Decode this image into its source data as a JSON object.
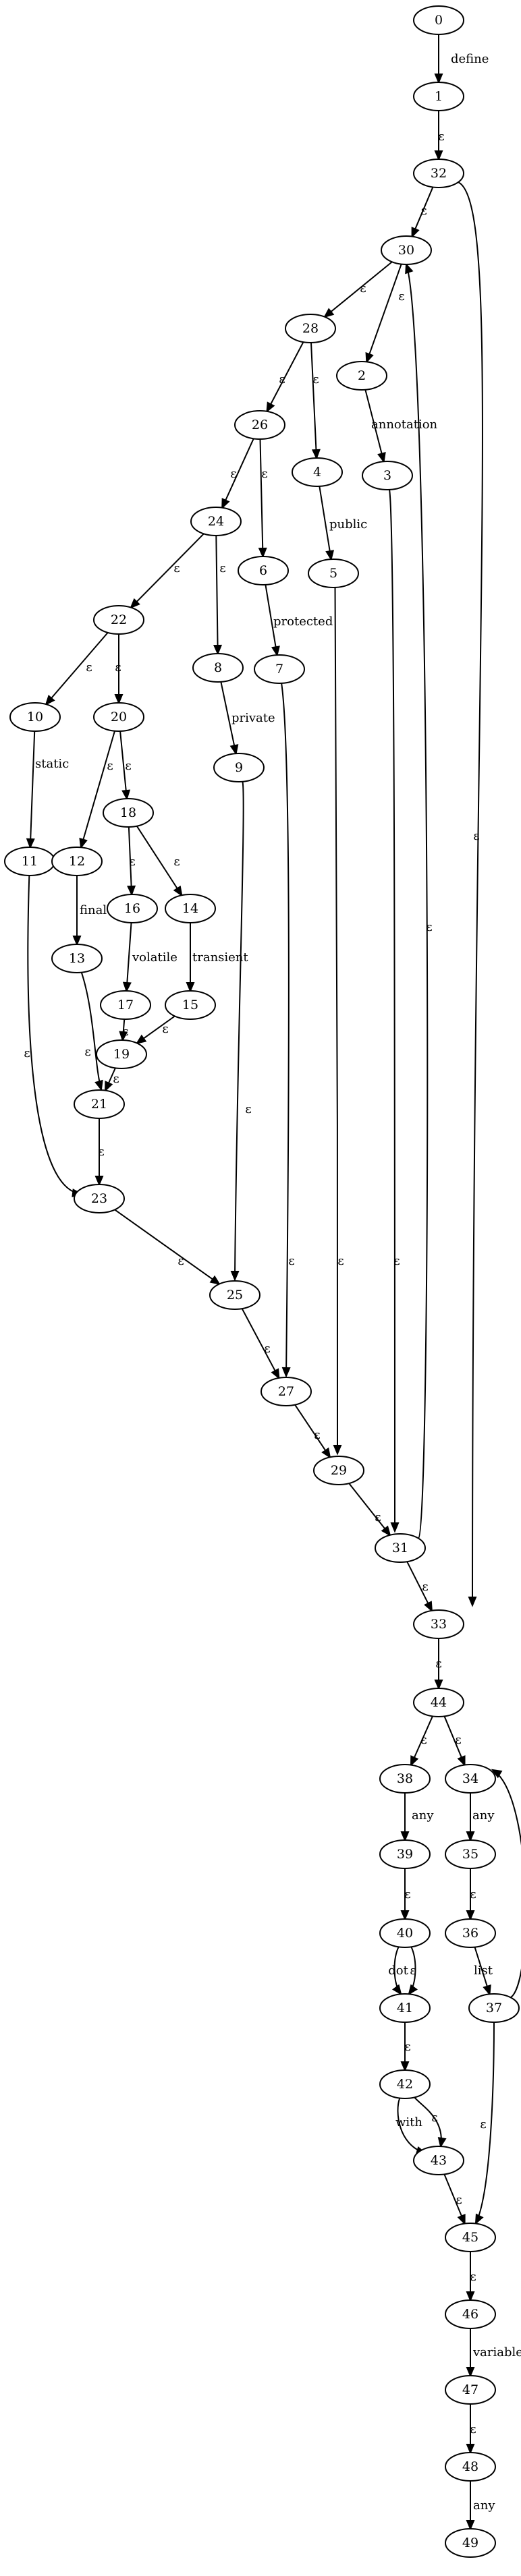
{
  "graph": {
    "nodes": [
      "0",
      "1",
      "32",
      "30",
      "28",
      "2",
      "26",
      "4",
      "3",
      "24",
      "6",
      "5",
      "22",
      "8",
      "7",
      "10",
      "20",
      "9",
      "11",
      "12",
      "18",
      "16",
      "14",
      "13",
      "17",
      "15",
      "19",
      "21",
      "23",
      "25",
      "27",
      "29",
      "31",
      "33",
      "44",
      "38",
      "34",
      "39",
      "35",
      "40",
      "36",
      "41",
      "37",
      "42",
      "43",
      "45",
      "46",
      "47",
      "48",
      "49"
    ],
    "edges": [
      {
        "from": "0",
        "to": "1",
        "label": "define"
      },
      {
        "from": "1",
        "to": "32",
        "label": "ε"
      },
      {
        "from": "32",
        "to": "30",
        "label": "ε"
      },
      {
        "from": "32",
        "to": "33",
        "label": "ε"
      },
      {
        "from": "30",
        "to": "28",
        "label": "ε"
      },
      {
        "from": "30",
        "to": "2",
        "label": "ε"
      },
      {
        "from": "28",
        "to": "26",
        "label": "ε"
      },
      {
        "from": "28",
        "to": "4",
        "label": "ε"
      },
      {
        "from": "2",
        "to": "3",
        "label": "annotation"
      },
      {
        "from": "26",
        "to": "24",
        "label": "ε"
      },
      {
        "from": "26",
        "to": "6",
        "label": "ε"
      },
      {
        "from": "4",
        "to": "5",
        "label": "public"
      },
      {
        "from": "3",
        "to": "31",
        "label": "ε"
      },
      {
        "from": "24",
        "to": "22",
        "label": "ε"
      },
      {
        "from": "24",
        "to": "8",
        "label": "ε"
      },
      {
        "from": "6",
        "to": "7",
        "label": "protected"
      },
      {
        "from": "5",
        "to": "29",
        "label": "ε"
      },
      {
        "from": "22",
        "to": "10",
        "label": "ε"
      },
      {
        "from": "22",
        "to": "20",
        "label": "ε"
      },
      {
        "from": "8",
        "to": "9",
        "label": "private"
      },
      {
        "from": "7",
        "to": "27",
        "label": "ε"
      },
      {
        "from": "10",
        "to": "11",
        "label": "static"
      },
      {
        "from": "20",
        "to": "12",
        "label": "ε"
      },
      {
        "from": "20",
        "to": "18",
        "label": "ε"
      },
      {
        "from": "9",
        "to": "25",
        "label": "ε"
      },
      {
        "from": "11",
        "to": "23",
        "label": "ε"
      },
      {
        "from": "12",
        "to": "13",
        "label": "final"
      },
      {
        "from": "18",
        "to": "16",
        "label": "ε"
      },
      {
        "from": "18",
        "to": "14",
        "label": "ε"
      },
      {
        "from": "16",
        "to": "17",
        "label": "volatile"
      },
      {
        "from": "14",
        "to": "15",
        "label": "transient"
      },
      {
        "from": "13",
        "to": "21",
        "label": "ε"
      },
      {
        "from": "17",
        "to": "19",
        "label": "ε"
      },
      {
        "from": "15",
        "to": "19",
        "label": "ε"
      },
      {
        "from": "19",
        "to": "21",
        "label": "ε"
      },
      {
        "from": "21",
        "to": "23",
        "label": "ε"
      },
      {
        "from": "23",
        "to": "25",
        "label": "ε"
      },
      {
        "from": "25",
        "to": "27",
        "label": "ε"
      },
      {
        "from": "27",
        "to": "29",
        "label": "ε"
      },
      {
        "from": "29",
        "to": "31",
        "label": "ε"
      },
      {
        "from": "31",
        "to": "30",
        "label": "ε"
      },
      {
        "from": "31",
        "to": "33",
        "label": "ε"
      },
      {
        "from": "33",
        "to": "44",
        "label": "ε"
      },
      {
        "from": "44",
        "to": "38",
        "label": "ε"
      },
      {
        "from": "44",
        "to": "34",
        "label": "ε"
      },
      {
        "from": "38",
        "to": "39",
        "label": "any"
      },
      {
        "from": "34",
        "to": "35",
        "label": "any"
      },
      {
        "from": "39",
        "to": "40",
        "label": "ε"
      },
      {
        "from": "35",
        "to": "36",
        "label": "ε"
      },
      {
        "from": "40",
        "to": "41",
        "label": "dot"
      },
      {
        "from": "40",
        "to": "41",
        "label": "ε"
      },
      {
        "from": "36",
        "to": "37",
        "label": "list"
      },
      {
        "from": "37",
        "to": "34",
        "label": "ε"
      },
      {
        "from": "41",
        "to": "42",
        "label": "ε"
      },
      {
        "from": "37",
        "to": "45",
        "label": "ε"
      },
      {
        "from": "42",
        "to": "43",
        "label": "with"
      },
      {
        "from": "42",
        "to": "43",
        "label": "ε"
      },
      {
        "from": "43",
        "to": "45",
        "label": "ε"
      },
      {
        "from": "45",
        "to": "46",
        "label": "ε"
      },
      {
        "from": "46",
        "to": "47",
        "label": "variable"
      },
      {
        "from": "47",
        "to": "48",
        "label": "ε"
      },
      {
        "from": "48",
        "to": "49",
        "label": "any"
      }
    ]
  }
}
